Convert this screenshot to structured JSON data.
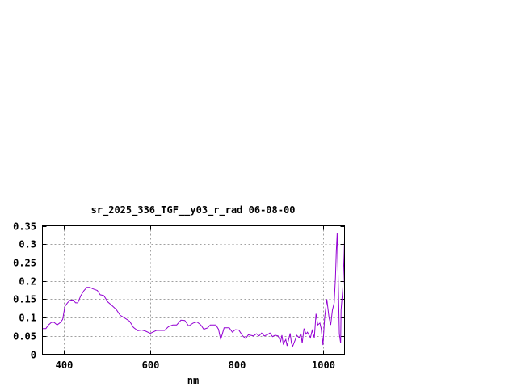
{
  "chart_data": {
    "type": "line",
    "title": "sr_2025_336_TGF__y03_r_rad 06-08-00",
    "xlabel": "nm",
    "ylabel": "",
    "xlim": [
      350,
      1050
    ],
    "ylim": [
      0,
      0.35
    ],
    "xticks": [
      400,
      600,
      800,
      1000
    ],
    "xtick_labels": [
      "400",
      "600",
      "800",
      "1000"
    ],
    "yticks": [
      0,
      0.05,
      0.1,
      0.15,
      0.2,
      0.25,
      0.3,
      0.35
    ],
    "ytick_labels": [
      "0",
      "0.05",
      "0.1",
      "0.15",
      "0.2",
      "0.25",
      "0.3",
      "0.35"
    ],
    "grid": true,
    "series_color": "#9400d3",
    "series": [
      {
        "x": [
          350,
          358,
          364,
          371,
          377,
          384,
          392,
          397,
          402,
          408,
          414,
          421,
          427,
          432,
          439,
          446,
          453,
          460,
          467,
          477,
          484,
          492,
          502,
          511,
          521,
          530,
          539,
          552,
          561,
          571,
          580,
          589,
          600,
          614,
          633,
          642,
          652,
          661,
          671,
          680,
          689,
          699,
          708,
          717,
          724,
          733,
          739,
          752,
          758,
          763,
          771,
          783,
          790,
          797,
          805,
          814,
          821,
          827,
          839,
          846,
          852,
          858,
          864,
          871,
          877,
          883,
          889,
          896,
          902,
          905,
          908,
          914,
          917,
          924,
          927,
          930,
          936,
          939,
          945,
          949,
          952,
          956,
          961,
          964,
          971,
          975,
          980,
          984,
          988,
          993,
          996,
          1000,
          1004,
          1009,
          1014,
          1018,
          1022,
          1026,
          1029,
          1031,
          1033,
          1036,
          1038,
          1041,
          1042,
          1046,
          1049,
          1050
        ],
        "y": [
          0.07,
          0.07,
          0.08,
          0.087,
          0.087,
          0.08,
          0.087,
          0.095,
          0.13,
          0.14,
          0.147,
          0.148,
          0.14,
          0.14,
          0.16,
          0.173,
          0.182,
          0.182,
          0.178,
          0.174,
          0.162,
          0.16,
          0.142,
          0.133,
          0.122,
          0.106,
          0.1,
          0.09,
          0.073,
          0.064,
          0.066,
          0.063,
          0.057,
          0.065,
          0.065,
          0.075,
          0.08,
          0.08,
          0.093,
          0.092,
          0.077,
          0.085,
          0.088,
          0.08,
          0.068,
          0.072,
          0.08,
          0.08,
          0.068,
          0.04,
          0.072,
          0.072,
          0.06,
          0.067,
          0.066,
          0.05,
          0.043,
          0.053,
          0.05,
          0.056,
          0.05,
          0.058,
          0.05,
          0.053,
          0.058,
          0.048,
          0.052,
          0.05,
          0.035,
          0.052,
          0.028,
          0.04,
          0.023,
          0.057,
          0.03,
          0.022,
          0.04,
          0.052,
          0.045,
          0.057,
          0.03,
          0.07,
          0.055,
          0.06,
          0.045,
          0.065,
          0.045,
          0.11,
          0.08,
          0.085,
          0.07,
          0.025,
          0.1,
          0.15,
          0.1,
          0.08,
          0.12,
          0.14,
          0.21,
          0.28,
          0.33,
          0.17,
          0.055,
          0.03,
          0.12,
          0.18,
          0.27,
          0.31
        ]
      }
    ]
  }
}
